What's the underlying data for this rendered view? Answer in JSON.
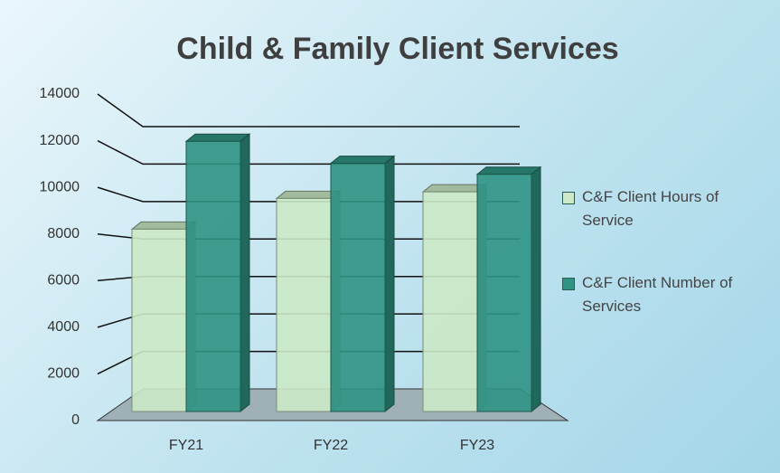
{
  "chart_data": {
    "type": "bar3d",
    "title": "Child & Family Client Services",
    "categories": [
      "FY21",
      "FY22",
      "FY23"
    ],
    "series": [
      {
        "name": "C&F Client Hours of Service",
        "color": "#cbe9c6",
        "values": [
          8300,
          9700,
          10000
        ]
      },
      {
        "name": "C&F Client Number of Services",
        "color": "#2f9484",
        "values": [
          12300,
          11300,
          10800
        ]
      }
    ],
    "ylim": [
      0,
      14000
    ],
    "yticks": [
      0,
      2000,
      4000,
      6000,
      8000,
      10000,
      12000,
      14000
    ],
    "grid": true,
    "legend": "right"
  }
}
